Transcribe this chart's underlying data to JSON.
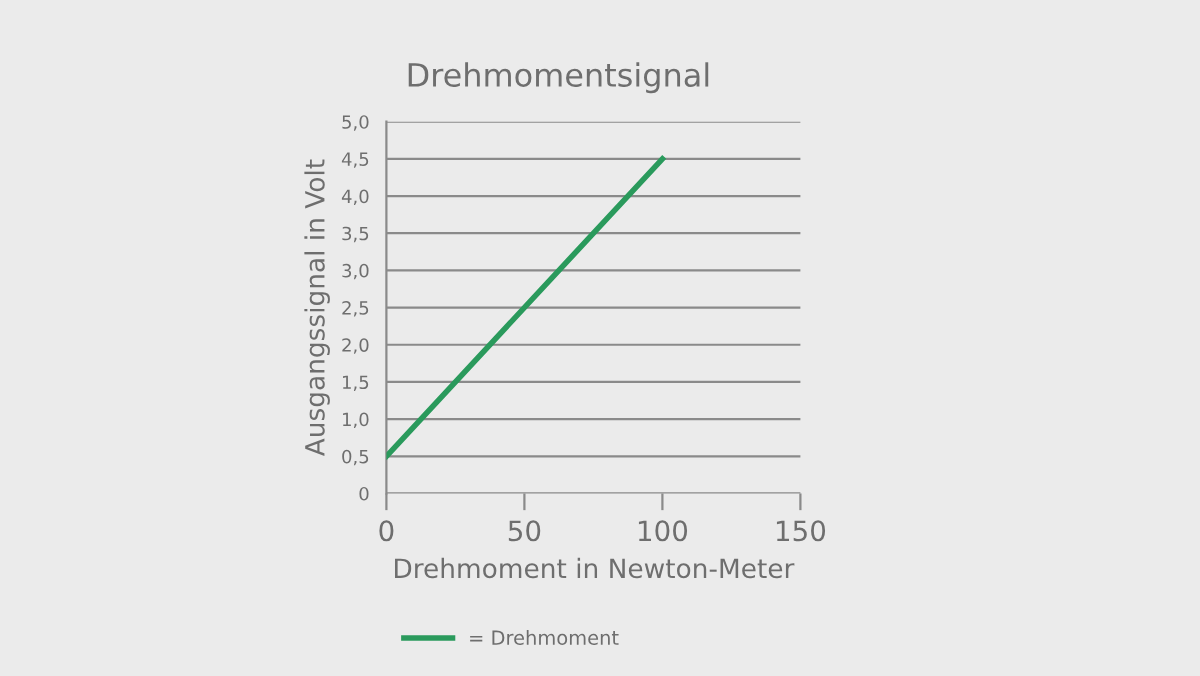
{
  "chart_data": {
    "type": "line",
    "title": "Drehmomentsignal",
    "xlabel": "Drehmoment in Newton-Meter",
    "ylabel": "Ausgangssignal in Volt",
    "series": [
      {
        "name": "= Drehmoment",
        "color": "#2a9a5c",
        "x": [
          0,
          100
        ],
        "values": [
          0.5,
          4.5
        ]
      }
    ],
    "xlim": [
      0,
      150
    ],
    "xticks": [
      0,
      50,
      100,
      150
    ],
    "ylim": [
      0,
      5
    ],
    "yticks": [
      0,
      {
        "value": 0.5,
        "label": "0,5"
      },
      {
        "value": 1,
        "label": "1,0"
      },
      {
        "value": 1.5,
        "label": "1,5"
      },
      {
        "value": 2,
        "label": "2,0"
      },
      {
        "value": 2.5,
        "label": "2,5"
      },
      {
        "value": 3,
        "label": "3,0"
      },
      {
        "value": 3.5,
        "label": "3,5"
      },
      {
        "value": 4,
        "label": "4,0"
      },
      {
        "value": 4.5,
        "label": "4,5"
      },
      {
        "value": 5,
        "label": "5,0"
      }
    ],
    "grid": "y",
    "legend": "bottom",
    "marker": "none",
    "line_style": "solid"
  }
}
